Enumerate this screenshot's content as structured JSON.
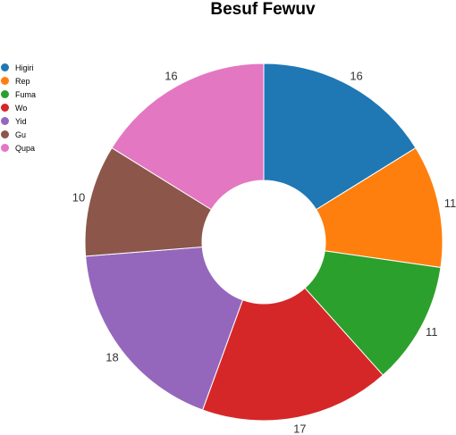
{
  "chart_data": {
    "type": "pie",
    "title": "Besuf Fewuv",
    "donut": true,
    "categories": [
      "Higiri",
      "Rep",
      "Fuma",
      "Wo",
      "Yid",
      "Gu",
      "Qupa"
    ],
    "values": [
      16,
      11,
      11,
      17,
      18,
      10,
      16
    ],
    "colors": [
      "#1f77b4",
      "#ff7f0e",
      "#2ca02c",
      "#d62728",
      "#9467bd",
      "#8c564b",
      "#e377c2"
    ],
    "legend_position": "top-left"
  }
}
